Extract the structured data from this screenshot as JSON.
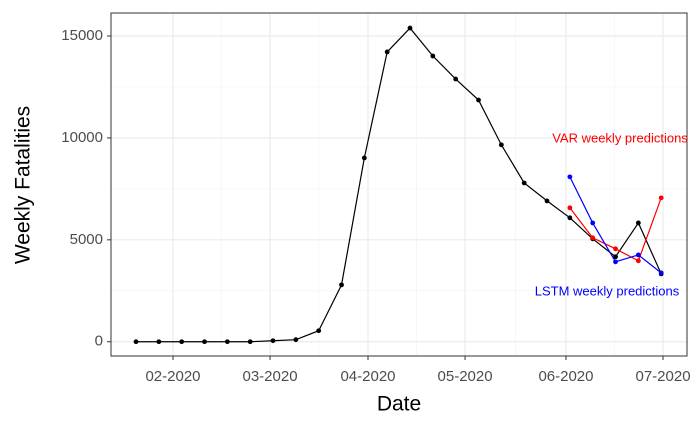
{
  "chart_data": {
    "type": "line",
    "x_label": "Date",
    "y_label": "Weekly Fatalities",
    "x": [
      0,
      1,
      2,
      3,
      4,
      5,
      6,
      7,
      8,
      9,
      10,
      11,
      12,
      13,
      14,
      15,
      16,
      17,
      18,
      19,
      20,
      21,
      22,
      23
    ],
    "series": [
      {
        "color": "#000000",
        "values": [
          0,
          0,
          0,
          0,
          0,
          0,
          50,
          100,
          540,
          2790,
          9020,
          14220,
          15390,
          14020,
          12890,
          11860,
          9660,
          7790,
          6910,
          6080,
          5050,
          4170,
          5830,
          3330
        ]
      },
      {
        "name": "VAR weekly predictions",
        "color": "#ff0000",
        "values": [
          null,
          null,
          null,
          null,
          null,
          null,
          null,
          null,
          null,
          null,
          null,
          null,
          null,
          null,
          null,
          null,
          null,
          null,
          null,
          6570,
          5100,
          4560,
          3970,
          7060
        ]
      },
      {
        "name": "LSTM weekly predictions",
        "color": "#0000ff",
        "values": [
          null,
          null,
          null,
          null,
          null,
          null,
          null,
          null,
          null,
          null,
          null,
          null,
          null,
          null,
          null,
          null,
          null,
          null,
          null,
          8090,
          5830,
          3920,
          4260,
          3380
        ]
      }
    ],
    "xlim": [
      -1.095,
      24.13
    ],
    "xticks": [
      {
        "value": 1.62,
        "label": "02-2020"
      },
      {
        "value": 5.87,
        "label": "03-2020"
      },
      {
        "value": 10.16,
        "label": "04-2020"
      },
      {
        "value": 14.41,
        "label": "05-2020"
      },
      {
        "value": 18.83,
        "label": "06-2020"
      },
      {
        "value": 23.08,
        "label": "07-2020"
      }
    ],
    "ylim": [
      -700,
      16130
    ],
    "yticks": [
      0,
      5000,
      10000,
      15000
    ],
    "grid": true
  }
}
